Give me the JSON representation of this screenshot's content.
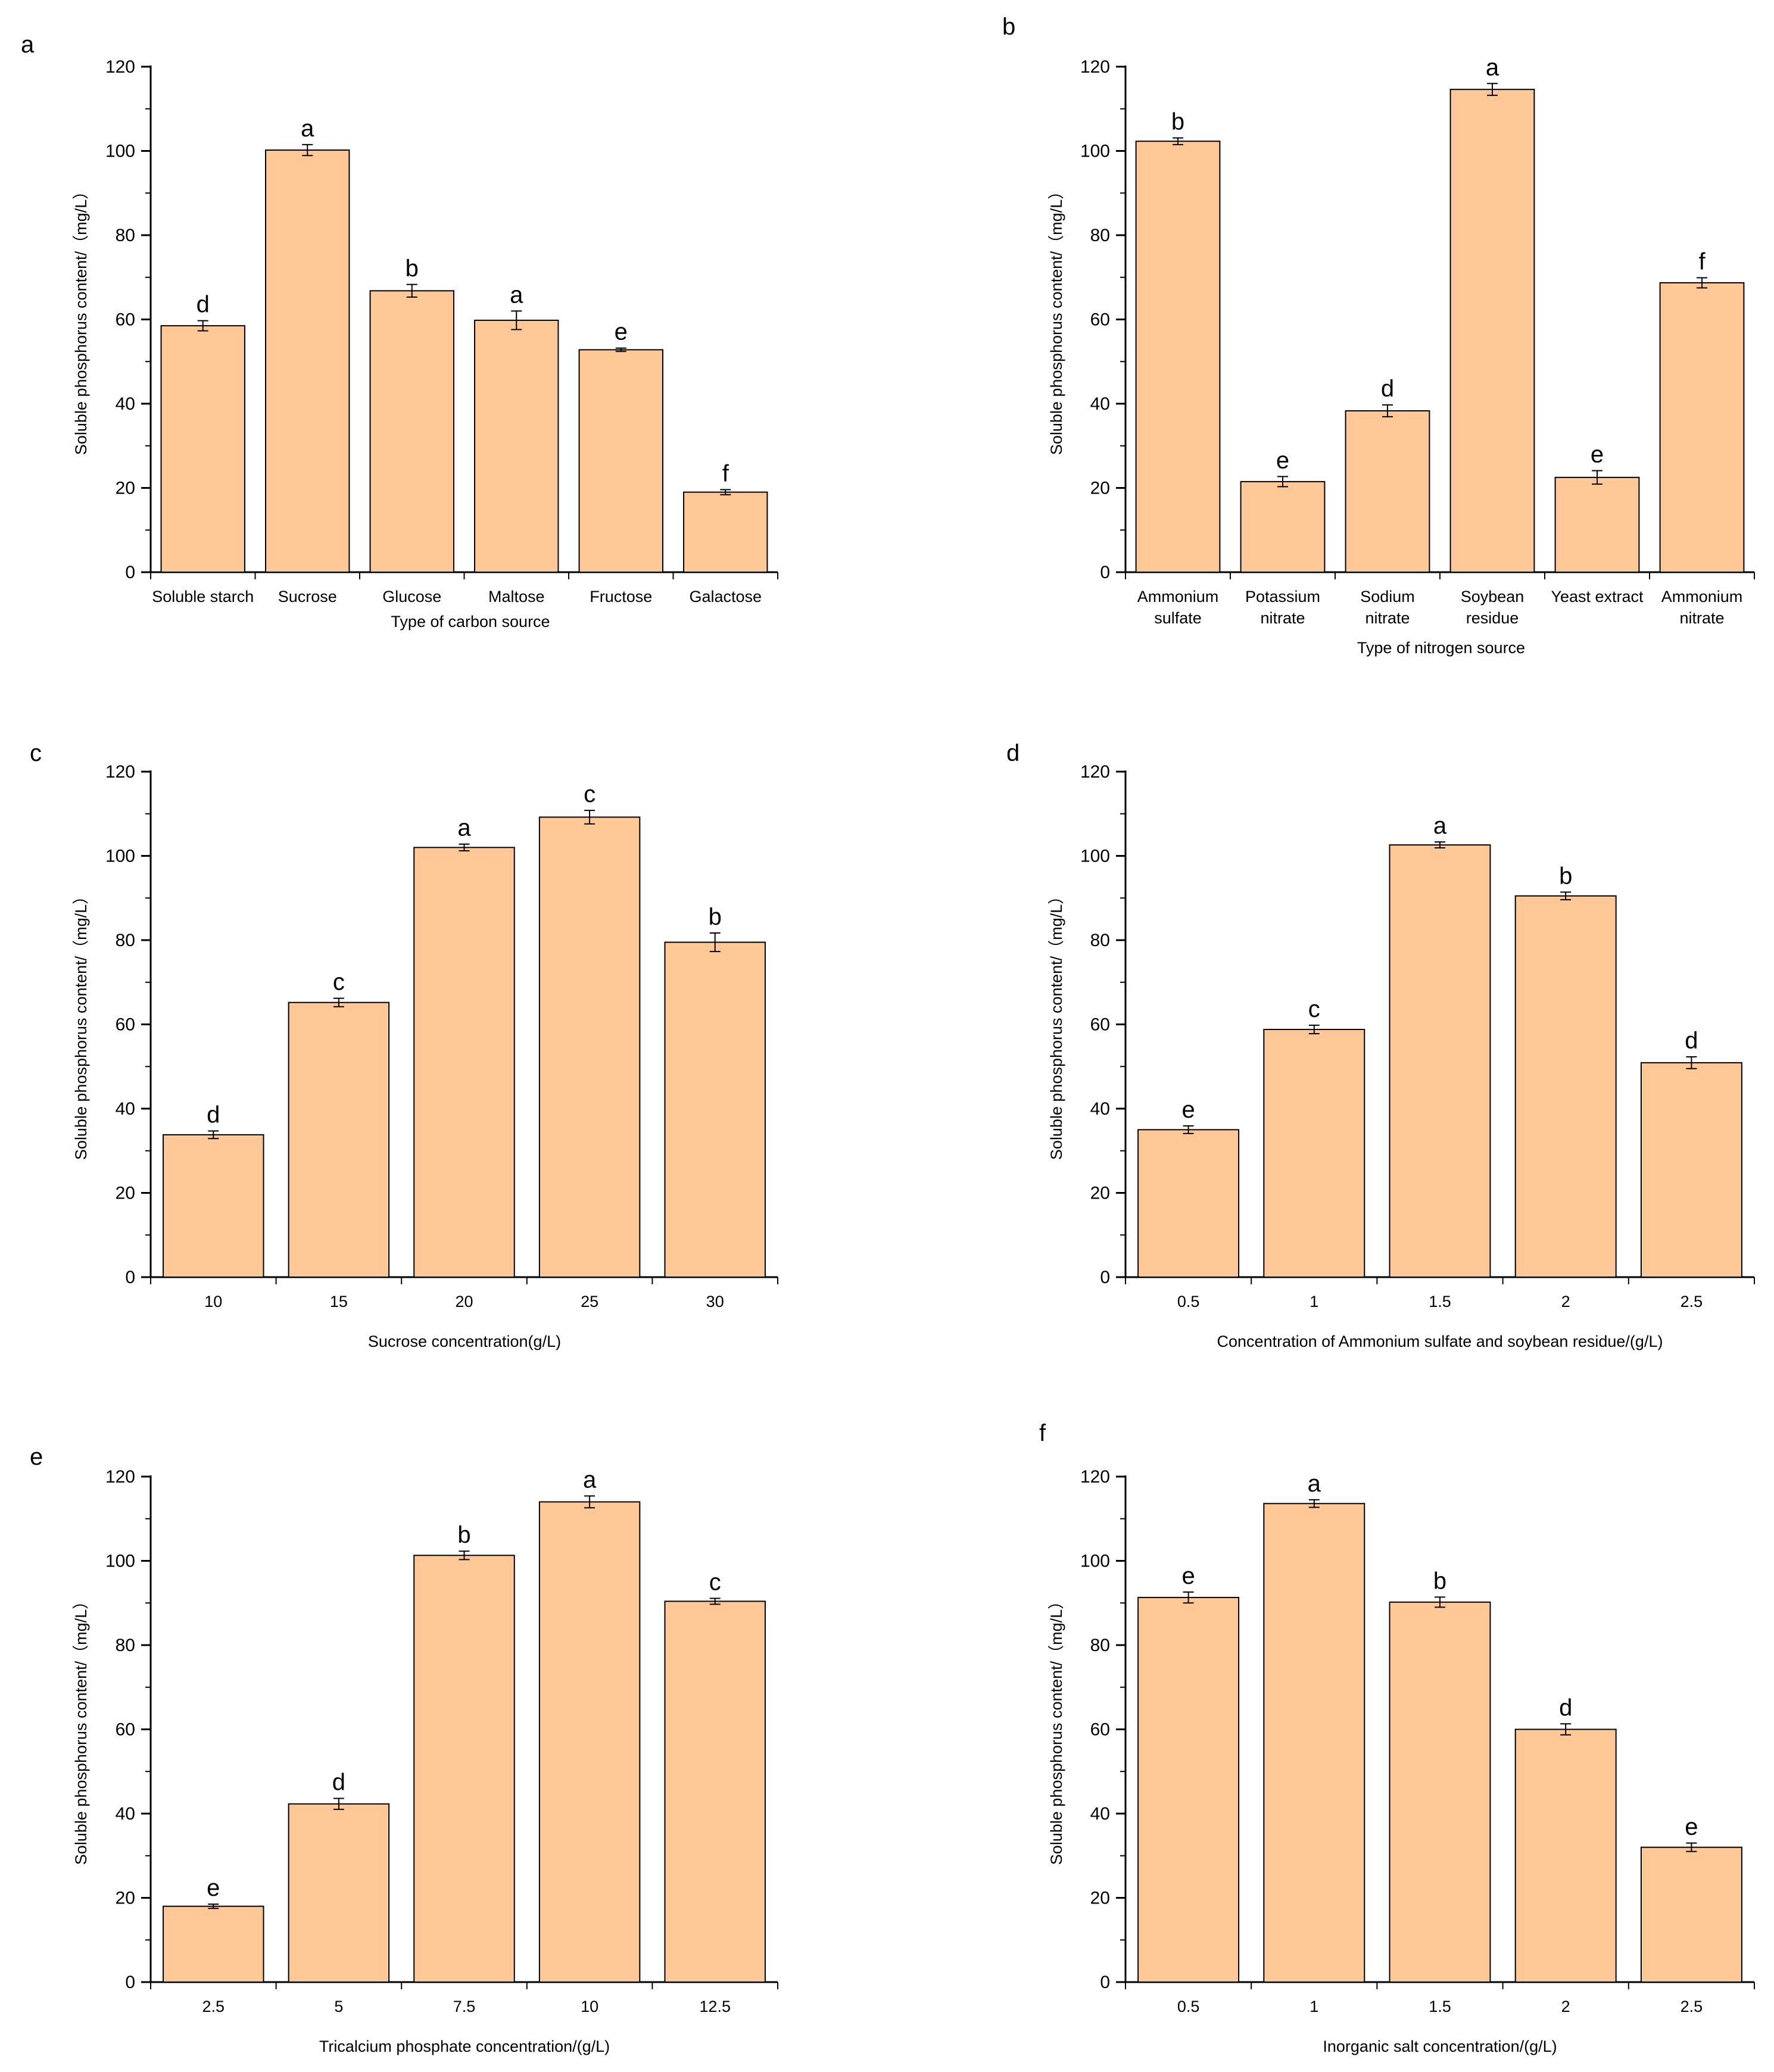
{
  "figure": {
    "bar_color": "#FFC896",
    "axis_color": "#000000"
  },
  "chart_data": [
    {
      "panel": "a",
      "type": "bar",
      "categories": [
        [
          "Soluble starch"
        ],
        [
          "Sucrose"
        ],
        [
          "Glucose"
        ],
        [
          "Maltose"
        ],
        [
          "Fructose"
        ],
        [
          "Galactose"
        ]
      ],
      "values": [
        58.5,
        100.2,
        66.8,
        59.8,
        52.8,
        19.0
      ],
      "errors": [
        1.2,
        1.3,
        1.5,
        2.2,
        0.4,
        0.6
      ],
      "significance": [
        "d",
        "a",
        "b",
        "a",
        "e",
        "f"
      ],
      "xlabel": "Type of carbon source",
      "ylabel": "Soluble phosphorus content/（mg/L）",
      "ylim": [
        0,
        120
      ],
      "yticks": [
        0,
        20,
        40,
        60,
        80,
        100,
        120
      ]
    },
    {
      "panel": "b",
      "type": "bar",
      "categories": [
        [
          "Ammonium",
          "sulfate"
        ],
        [
          "Potassium",
          "nitrate"
        ],
        [
          "Sodium",
          "nitrate"
        ],
        [
          "Soybean",
          "residue"
        ],
        [
          "Yeast extract"
        ],
        [
          "Ammonium",
          "nitrate"
        ]
      ],
      "values": [
        102.3,
        21.5,
        38.3,
        114.6,
        22.5,
        68.7
      ],
      "errors": [
        0.8,
        1.2,
        1.4,
        1.4,
        1.6,
        1.2
      ],
      "significance": [
        "b",
        "e",
        "d",
        "a",
        "e",
        "f"
      ],
      "xlabel": "Type of nitrogen source",
      "ylabel": "Soluble phosphorus content/（mg/L）",
      "ylim": [
        0,
        120
      ],
      "yticks": [
        0,
        20,
        40,
        60,
        80,
        100,
        120
      ]
    },
    {
      "panel": "c",
      "type": "bar",
      "categories": [
        [
          "10"
        ],
        [
          "15"
        ],
        [
          "20"
        ],
        [
          "25"
        ],
        [
          "30"
        ]
      ],
      "values": [
        33.8,
        65.2,
        102.0,
        109.2,
        79.5
      ],
      "errors": [
        0.9,
        1.0,
        0.8,
        1.6,
        2.2
      ],
      "significance": [
        "d",
        "c",
        "a",
        "c",
        "b"
      ],
      "xlabel": "Sucrose concentration(g/L)",
      "ylabel": "Soluble phosphorus content/（mg/L）",
      "ylim": [
        0,
        120
      ],
      "yticks": [
        0,
        20,
        40,
        60,
        80,
        100,
        120
      ]
    },
    {
      "panel": "d",
      "type": "bar",
      "categories": [
        [
          "0.5"
        ],
        [
          "1"
        ],
        [
          "1.5"
        ],
        [
          "2"
        ],
        [
          "2.5"
        ]
      ],
      "values": [
        35.0,
        58.8,
        102.6,
        90.5,
        50.9
      ],
      "errors": [
        0.9,
        1.0,
        0.7,
        0.9,
        1.4
      ],
      "significance": [
        "e",
        "c",
        "a",
        "b",
        "d"
      ],
      "xlabel": "Concentration of Ammonium sulfate and soybean residue/(g/L)",
      "ylabel": "Soluble phosphorus content/（mg/L）",
      "ylim": [
        0,
        120
      ],
      "yticks": [
        0,
        20,
        40,
        60,
        80,
        100,
        120
      ]
    },
    {
      "panel": "e",
      "type": "bar",
      "categories": [
        [
          "2.5"
        ],
        [
          "5"
        ],
        [
          "7.5"
        ],
        [
          "10"
        ],
        [
          "12.5"
        ]
      ],
      "values": [
        18.0,
        42.3,
        101.3,
        114.0,
        90.4
      ],
      "errors": [
        0.5,
        1.3,
        1.0,
        1.4,
        0.7
      ],
      "significance": [
        "e",
        "d",
        "b",
        "a",
        "c"
      ],
      "xlabel": "Tricalcium phosphate concentration/(g/L)",
      "ylabel": "Soluble phosphorus content/（mg/L）",
      "ylim": [
        0,
        120
      ],
      "yticks": [
        0,
        20,
        40,
        60,
        80,
        100,
        120
      ]
    },
    {
      "panel": "f",
      "type": "bar",
      "categories": [
        [
          "0.5"
        ],
        [
          "1"
        ],
        [
          "1.5"
        ],
        [
          "2"
        ],
        [
          "2.5"
        ]
      ],
      "values": [
        91.3,
        113.6,
        90.2,
        60.0,
        32.0
      ],
      "errors": [
        1.3,
        0.9,
        1.2,
        1.3,
        1.0
      ],
      "significance": [
        "e",
        "a",
        "b",
        "d",
        "e"
      ],
      "xlabel": "Inorganic salt concentration/(g/L)",
      "ylabel": "Soluble phosphorus content/（mg/L）",
      "ylim": [
        0,
        120
      ],
      "yticks": [
        0,
        20,
        40,
        60,
        80,
        100,
        120
      ]
    }
  ]
}
